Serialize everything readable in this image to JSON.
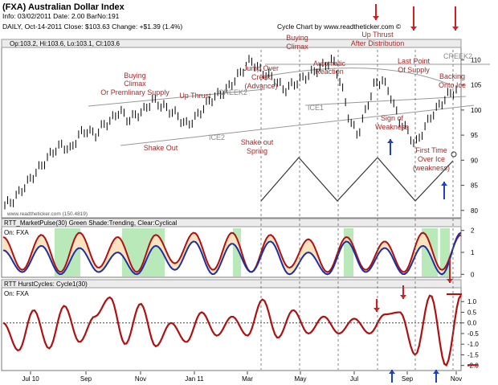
{
  "header": {
    "title": "(FXA) Australian Dollar Index",
    "info": "Info: 03/02/2011 Date: 2.00 BarNo:191",
    "daily": "DAILY, Oct-14-2011  Close: $103.63  Change: +$1.39  (1.4%)",
    "source": "Cycle Chart by www.readtheticker.com ©"
  },
  "panel1": {
    "label": "Op:103.2, Hi:103.6, Lo:103.1, Cl:103.6",
    "watermark": "www.readtheticker.com (150.4819)",
    "creek_labels": [
      "CREEK2",
      "CREEK2"
    ],
    "ice_labels": [
      "ICE1",
      "ICE2"
    ],
    "annotations": [
      "Buying",
      "Climax",
      "Or Premlinary Supply",
      "Up Thrust",
      "Shake Out",
      "Jump Over",
      "Creek",
      "(Advance)",
      "Shake out",
      "Spring",
      "Buying",
      "Climax",
      "Automatic",
      "Reaction",
      "Up Thrust",
      "After Distribution",
      "Last Point",
      "Of Supply",
      "Backing",
      "Onto Ice",
      "Sign of",
      "Weakness",
      "First Time",
      "Over Ice",
      "(weakness)"
    ]
  },
  "panel2": {
    "label": "RTT_MarketPulse(30) Green Shade:Trending, Clear:Cyclical",
    "sub": "On: FXA"
  },
  "panel3": {
    "label": "RTT HurstCycles: Cycle1(30)",
    "sub": "On: FXA"
  },
  "colors": {
    "price": "#000000",
    "curve_red": "#b01010",
    "curve_blue": "#1a2fa8",
    "fill": "#fbe3bf",
    "shade_green": "#7fd67f",
    "annotation": "#a52a2a",
    "arrow_red": "#d02020",
    "arrow_blue": "#2040c0"
  },
  "chart_data": [
    {
      "type": "line",
      "series": [
        {
          "values": [
            81,
            82,
            84,
            86,
            88,
            90,
            92,
            93,
            92,
            95,
            96,
            95,
            97,
            98,
            100,
            98,
            99,
            100,
            102,
            101,
            100,
            99,
            97,
            98,
            100,
            102,
            103,
            104,
            106,
            108,
            110,
            108,
            107,
            106,
            104,
            105,
            106,
            107,
            108,
            109,
            110,
            105,
            98,
            95,
            100,
            105,
            106,
            103,
            98,
            96,
            93,
            96,
            99,
            101,
            103,
            104
          ]
        }
      ],
      "yticks": [
        80,
        85,
        90,
        95,
        100,
        105,
        110
      ],
      "ylim": [
        79,
        112
      ],
      "xticks": [
        "Jul 10",
        "Sep",
        "Nov",
        "Jan 11",
        "Mar",
        "May",
        "Jul",
        "Sep",
        "Nov"
      ]
    },
    {
      "type": "line",
      "series": [
        {
          "values": [
            1.7,
            0.2,
            1.8,
            0.1,
            1.9,
            0.3,
            1.7,
            0.1,
            1.8,
            0.5,
            1.9,
            0.2,
            1.9,
            0.1,
            1.8,
            0.3,
            1.6,
            0.1,
            1.7,
            0.2,
            1.5,
            0.1,
            1.9,
            0.2,
            1.8
          ]
        },
        {
          "values": [
            1.1,
            0.1,
            1.3,
            0.0,
            1.2,
            0.1,
            1.0,
            0.0,
            1.3,
            0.2,
            1.5,
            0.0,
            1.4,
            0.1,
            1.5,
            0.0,
            1.0,
            0.0,
            1.5,
            0.1,
            1.2,
            0.0,
            1.3,
            0.0,
            1.9
          ]
        }
      ],
      "yticks": [
        0,
        1,
        2
      ],
      "ylim": [
        -0.1,
        2.1
      ]
    },
    {
      "type": "line",
      "series": [
        {
          "values": [
            0.0,
            -1.3,
            0.6,
            -1.2,
            0.8,
            -0.9,
            0.3,
            1.2,
            -1.0,
            0.9,
            -1.1,
            0.0,
            -0.9,
            0.5,
            -0.6,
            0.3,
            -0.6,
            1.1,
            -0.7,
            0.6,
            -0.5,
            0.3,
            -0.5,
            0.2,
            -0.5,
            0.4,
            0.5,
            -1.5,
            1.3,
            -2.0,
            1.3
          ]
        }
      ],
      "yticks": [
        1.0,
        0.5,
        0.0,
        -0.5,
        -1.0,
        -1.5,
        -2.0
      ],
      "ylim": [
        -2.2,
        1.5
      ]
    }
  ]
}
